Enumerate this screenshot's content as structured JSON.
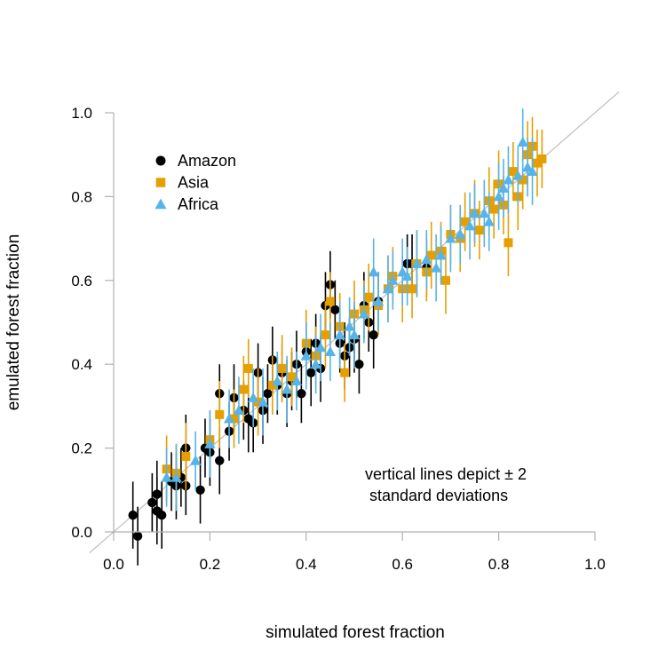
{
  "chart_data": {
    "type": "scatter",
    "title": "",
    "xlabel": "simulated forest fraction",
    "ylabel": "emulated forest fraction",
    "xlim": [
      0,
      1
    ],
    "ylim": [
      0,
      1
    ],
    "xticks": [
      "0.0",
      "0.2",
      "0.4",
      "0.6",
      "0.8",
      "1.0"
    ],
    "yticks": [
      "0.0",
      "0.2",
      "0.4",
      "0.6",
      "0.8",
      "1.0"
    ],
    "grid": false,
    "legend_position": "top-left",
    "reference_line": "y = x",
    "annotation": [
      "vertical lines depict ± 2",
      "standard deviations"
    ],
    "series": [
      {
        "name": "Amazon",
        "marker": "circle",
        "color": "#000000",
        "points": [
          [
            0.04,
            0.04,
            0.08
          ],
          [
            0.05,
            -0.01,
            0.07
          ],
          [
            0.08,
            0.07,
            0.07
          ],
          [
            0.09,
            0.09,
            0.08
          ],
          [
            0.09,
            0.05,
            0.08
          ],
          [
            0.1,
            0.04,
            0.08
          ],
          [
            0.12,
            0.12,
            0.07
          ],
          [
            0.13,
            0.11,
            0.08
          ],
          [
            0.14,
            0.13,
            0.07
          ],
          [
            0.15,
            0.2,
            0.08
          ],
          [
            0.15,
            0.11,
            0.07
          ],
          [
            0.18,
            0.1,
            0.08
          ],
          [
            0.19,
            0.2,
            0.07
          ],
          [
            0.2,
            0.19,
            0.08
          ],
          [
            0.22,
            0.33,
            0.07
          ],
          [
            0.22,
            0.17,
            0.08
          ],
          [
            0.24,
            0.24,
            0.07
          ],
          [
            0.25,
            0.32,
            0.08
          ],
          [
            0.27,
            0.29,
            0.07
          ],
          [
            0.28,
            0.27,
            0.08
          ],
          [
            0.29,
            0.26,
            0.07
          ],
          [
            0.3,
            0.38,
            0.07
          ],
          [
            0.31,
            0.29,
            0.08
          ],
          [
            0.32,
            0.33,
            0.07
          ],
          [
            0.33,
            0.41,
            0.08
          ],
          [
            0.34,
            0.35,
            0.07
          ],
          [
            0.35,
            0.38,
            0.07
          ],
          [
            0.36,
            0.33,
            0.08
          ],
          [
            0.37,
            0.36,
            0.07
          ],
          [
            0.38,
            0.4,
            0.08
          ],
          [
            0.39,
            0.33,
            0.07
          ],
          [
            0.4,
            0.43,
            0.07
          ],
          [
            0.41,
            0.38,
            0.08
          ],
          [
            0.42,
            0.45,
            0.07
          ],
          [
            0.43,
            0.39,
            0.08
          ],
          [
            0.44,
            0.54,
            0.08
          ],
          [
            0.45,
            0.59,
            0.08
          ],
          [
            0.46,
            0.53,
            0.07
          ],
          [
            0.47,
            0.45,
            0.07
          ],
          [
            0.48,
            0.42,
            0.08
          ],
          [
            0.49,
            0.44,
            0.07
          ],
          [
            0.5,
            0.46,
            0.08
          ],
          [
            0.51,
            0.4,
            0.07
          ],
          [
            0.52,
            0.54,
            0.08
          ],
          [
            0.53,
            0.5,
            0.07
          ],
          [
            0.54,
            0.47,
            0.08
          ],
          [
            0.55,
            0.55,
            0.07
          ],
          [
            0.61,
            0.64,
            0.07
          ],
          [
            0.62,
            0.64,
            0.07
          ],
          [
            0.65,
            0.63,
            0.07
          ]
        ]
      },
      {
        "name": "Asia",
        "marker": "square",
        "color": "#E69F00",
        "points": [
          [
            0.11,
            0.15,
            0.08
          ],
          [
            0.13,
            0.14,
            0.07
          ],
          [
            0.15,
            0.18,
            0.08
          ],
          [
            0.2,
            0.22,
            0.07
          ],
          [
            0.22,
            0.28,
            0.08
          ],
          [
            0.25,
            0.27,
            0.07
          ],
          [
            0.27,
            0.34,
            0.08
          ],
          [
            0.28,
            0.39,
            0.07
          ],
          [
            0.3,
            0.31,
            0.08
          ],
          [
            0.33,
            0.35,
            0.07
          ],
          [
            0.35,
            0.39,
            0.08
          ],
          [
            0.37,
            0.37,
            0.07
          ],
          [
            0.4,
            0.45,
            0.08
          ],
          [
            0.42,
            0.42,
            0.07
          ],
          [
            0.44,
            0.47,
            0.08
          ],
          [
            0.45,
            0.55,
            0.07
          ],
          [
            0.47,
            0.49,
            0.08
          ],
          [
            0.48,
            0.38,
            0.07
          ],
          [
            0.5,
            0.52,
            0.08
          ],
          [
            0.52,
            0.53,
            0.07
          ],
          [
            0.53,
            0.56,
            0.08
          ],
          [
            0.55,
            0.54,
            0.07
          ],
          [
            0.57,
            0.58,
            0.08
          ],
          [
            0.58,
            0.61,
            0.07
          ],
          [
            0.6,
            0.58,
            0.08
          ],
          [
            0.62,
            0.58,
            0.07
          ],
          [
            0.63,
            0.64,
            0.08
          ],
          [
            0.65,
            0.62,
            0.07
          ],
          [
            0.66,
            0.66,
            0.08
          ],
          [
            0.68,
            0.67,
            0.07
          ],
          [
            0.69,
            0.6,
            0.08
          ],
          [
            0.7,
            0.71,
            0.07
          ],
          [
            0.72,
            0.7,
            0.08
          ],
          [
            0.73,
            0.74,
            0.07
          ],
          [
            0.75,
            0.76,
            0.08
          ],
          [
            0.76,
            0.72,
            0.07
          ],
          [
            0.78,
            0.79,
            0.08
          ],
          [
            0.79,
            0.77,
            0.07
          ],
          [
            0.8,
            0.83,
            0.08
          ],
          [
            0.81,
            0.78,
            0.07
          ],
          [
            0.82,
            0.69,
            0.08
          ],
          [
            0.83,
            0.86,
            0.07
          ],
          [
            0.84,
            0.8,
            0.08
          ],
          [
            0.85,
            0.84,
            0.07
          ],
          [
            0.86,
            0.9,
            0.08
          ],
          [
            0.87,
            0.92,
            0.07
          ],
          [
            0.88,
            0.88,
            0.08
          ],
          [
            0.89,
            0.89,
            0.07
          ]
        ]
      },
      {
        "name": "Africa",
        "marker": "triangle",
        "color": "#56B4E9",
        "points": [
          [
            0.11,
            0.13,
            0.07
          ],
          [
            0.13,
            0.13,
            0.08
          ],
          [
            0.17,
            0.17,
            0.07
          ],
          [
            0.2,
            0.21,
            0.08
          ],
          [
            0.24,
            0.27,
            0.07
          ],
          [
            0.26,
            0.29,
            0.08
          ],
          [
            0.29,
            0.32,
            0.07
          ],
          [
            0.31,
            0.31,
            0.08
          ],
          [
            0.34,
            0.36,
            0.07
          ],
          [
            0.36,
            0.34,
            0.08
          ],
          [
            0.38,
            0.36,
            0.07
          ],
          [
            0.4,
            0.42,
            0.08
          ],
          [
            0.42,
            0.4,
            0.07
          ],
          [
            0.43,
            0.44,
            0.08
          ],
          [
            0.45,
            0.43,
            0.07
          ],
          [
            0.47,
            0.47,
            0.08
          ],
          [
            0.49,
            0.49,
            0.07
          ],
          [
            0.5,
            0.47,
            0.08
          ],
          [
            0.52,
            0.52,
            0.07
          ],
          [
            0.54,
            0.62,
            0.08
          ],
          [
            0.55,
            0.55,
            0.07
          ],
          [
            0.57,
            0.58,
            0.08
          ],
          [
            0.58,
            0.6,
            0.07
          ],
          [
            0.6,
            0.62,
            0.08
          ],
          [
            0.61,
            0.61,
            0.07
          ],
          [
            0.63,
            0.64,
            0.08
          ],
          [
            0.65,
            0.65,
            0.07
          ],
          [
            0.67,
            0.63,
            0.08
          ],
          [
            0.68,
            0.66,
            0.07
          ],
          [
            0.7,
            0.7,
            0.08
          ],
          [
            0.72,
            0.71,
            0.07
          ],
          [
            0.74,
            0.73,
            0.08
          ],
          [
            0.75,
            0.76,
            0.07
          ],
          [
            0.77,
            0.76,
            0.08
          ],
          [
            0.78,
            0.74,
            0.07
          ],
          [
            0.8,
            0.8,
            0.08
          ],
          [
            0.81,
            0.82,
            0.07
          ],
          [
            0.82,
            0.84,
            0.08
          ],
          [
            0.84,
            0.85,
            0.07
          ],
          [
            0.85,
            0.93,
            0.08
          ],
          [
            0.86,
            0.87,
            0.07
          ],
          [
            0.87,
            0.86,
            0.08
          ]
        ]
      }
    ]
  }
}
